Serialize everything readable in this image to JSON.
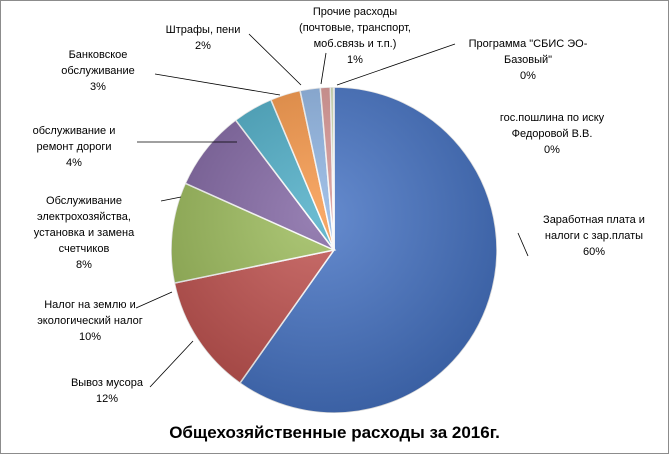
{
  "chart_data": {
    "type": "pie",
    "title": "Общехозяйственные расходы за 2016г.",
    "slices": [
      {
        "label": [
          "Заработная плата и",
          "налоги с зар.платы"
        ],
        "value_label": "60%",
        "value": 60.0,
        "color": "#4472c4"
      },
      {
        "label": [
          "Вывоз мусора"
        ],
        "value_label": "12%",
        "value": 12.0,
        "color": "#c0504d"
      },
      {
        "label": [
          "Налог на землю и",
          "экологический налог"
        ],
        "value_label": "10%",
        "value": 10.0,
        "color": "#9bbb59"
      },
      {
        "label": [
          "Обслуживание",
          "электрохозяйства,",
          "установка и замена",
          "счетчиков"
        ],
        "value_label": "8%",
        "value": 8.0,
        "color": "#8064a2"
      },
      {
        "label": [
          "обслуживание и",
          "ремонт дороги"
        ],
        "value_label": "4%",
        "value": 4.0,
        "color": "#4bacc6"
      },
      {
        "label": [
          "Банковское",
          "обслуживание"
        ],
        "value_label": "3%",
        "value": 3.0,
        "color": "#f79646"
      },
      {
        "label": [
          "Штрафы, пени"
        ],
        "value_label": "2%",
        "value": 2.0,
        "color": "#8eb4e3"
      },
      {
        "label": [
          "Прочие расходы",
          "(почтовые, транспорт,",
          "моб.связь и т.п.)"
        ],
        "value_label": "1%",
        "value": 1.0,
        "color": "#d99694"
      },
      {
        "label": [
          "Программа \"СБИС ЭО-",
          "Базовый\""
        ],
        "value_label": "0%",
        "value": 0.3,
        "color": "#c3d69b"
      },
      {
        "label": [
          "гос.пошлина по иску",
          "Федоровой  В.В."
        ],
        "value_label": "0%",
        "value": 0.05,
        "color": "#b3a2c7"
      }
    ]
  }
}
